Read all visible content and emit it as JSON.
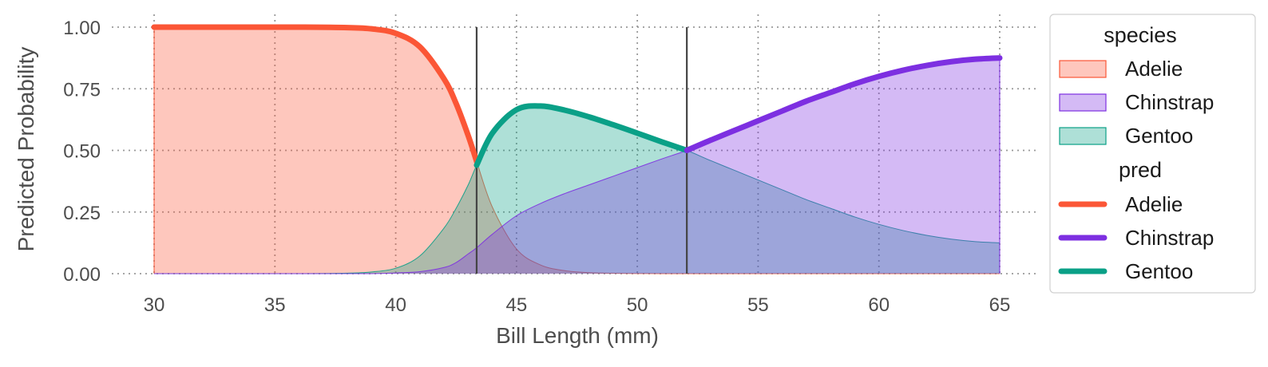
{
  "chart_data": {
    "type": "area",
    "xlabel": "Bill Length (mm)",
    "ylabel": "Predicted Probability",
    "xlim": [
      30,
      65
    ],
    "ylim": [
      0,
      1
    ],
    "x_ticks": [
      "30",
      "35",
      "40",
      "45",
      "50",
      "55",
      "60",
      "65"
    ],
    "y_ticks": [
      "0.00",
      "0.25",
      "0.50",
      "0.75",
      "1.00"
    ],
    "grid": true,
    "legend_position": "right",
    "decision_boundaries": [
      43.35,
      52.05
    ],
    "x": [
      30,
      32,
      34,
      36,
      38,
      39,
      40,
      41,
      42,
      42.5,
      43,
      43.35,
      44,
      45,
      46,
      47,
      48,
      49,
      50,
      51,
      52.05,
      53,
      54,
      55,
      56,
      57,
      58,
      59,
      60,
      61,
      62,
      63,
      64,
      65
    ],
    "series": [
      {
        "group": "species",
        "name": "Adelie",
        "color": "#fb5636",
        "values": [
          1.0,
          1.0,
          1.0,
          1.0,
          0.998,
          0.993,
          0.975,
          0.92,
          0.79,
          0.69,
          0.56,
          0.455,
          0.27,
          0.1,
          0.035,
          0.012,
          0.004,
          0.0015,
          0.0005,
          0.0002,
          0.0001,
          0,
          0,
          0,
          0,
          0,
          0,
          0,
          0,
          0,
          0,
          0,
          0,
          0
        ]
      },
      {
        "group": "species",
        "name": "Chinstrap",
        "color": "#7d2fe1",
        "values": [
          0,
          0,
          0,
          0,
          0,
          0,
          0.003,
          0.008,
          0.025,
          0.045,
          0.08,
          0.105,
          0.16,
          0.235,
          0.285,
          0.325,
          0.36,
          0.395,
          0.43,
          0.465,
          0.5,
          0.54,
          0.58,
          0.62,
          0.66,
          0.7,
          0.735,
          0.77,
          0.8,
          0.825,
          0.845,
          0.86,
          0.87,
          0.875
        ]
      },
      {
        "group": "species",
        "name": "Gentoo",
        "color": "#0aa087",
        "values": [
          0,
          0,
          0,
          0,
          0.002,
          0.007,
          0.022,
          0.072,
          0.185,
          0.265,
          0.36,
          0.44,
          0.57,
          0.665,
          0.68,
          0.663,
          0.636,
          0.604,
          0.57,
          0.535,
          0.5,
          0.46,
          0.42,
          0.38,
          0.34,
          0.3,
          0.265,
          0.23,
          0.2,
          0.175,
          0.155,
          0.14,
          0.13,
          0.125
        ]
      }
    ],
    "pred": [
      {
        "name": "Adelie",
        "color": "#fb5636",
        "x_range": [
          30,
          43.35
        ]
      },
      {
        "name": "Gentoo",
        "color": "#0aa087",
        "x_range": [
          43.35,
          52.05
        ]
      },
      {
        "name": "Chinstrap",
        "color": "#7d2fe1",
        "x_range": [
          52.05,
          65
        ]
      }
    ],
    "legend": {
      "species_title": "species",
      "pred_title": "pred",
      "species": [
        "Adelie",
        "Chinstrap",
        "Gentoo"
      ],
      "pred": [
        "Adelie",
        "Chinstrap",
        "Gentoo"
      ]
    }
  }
}
